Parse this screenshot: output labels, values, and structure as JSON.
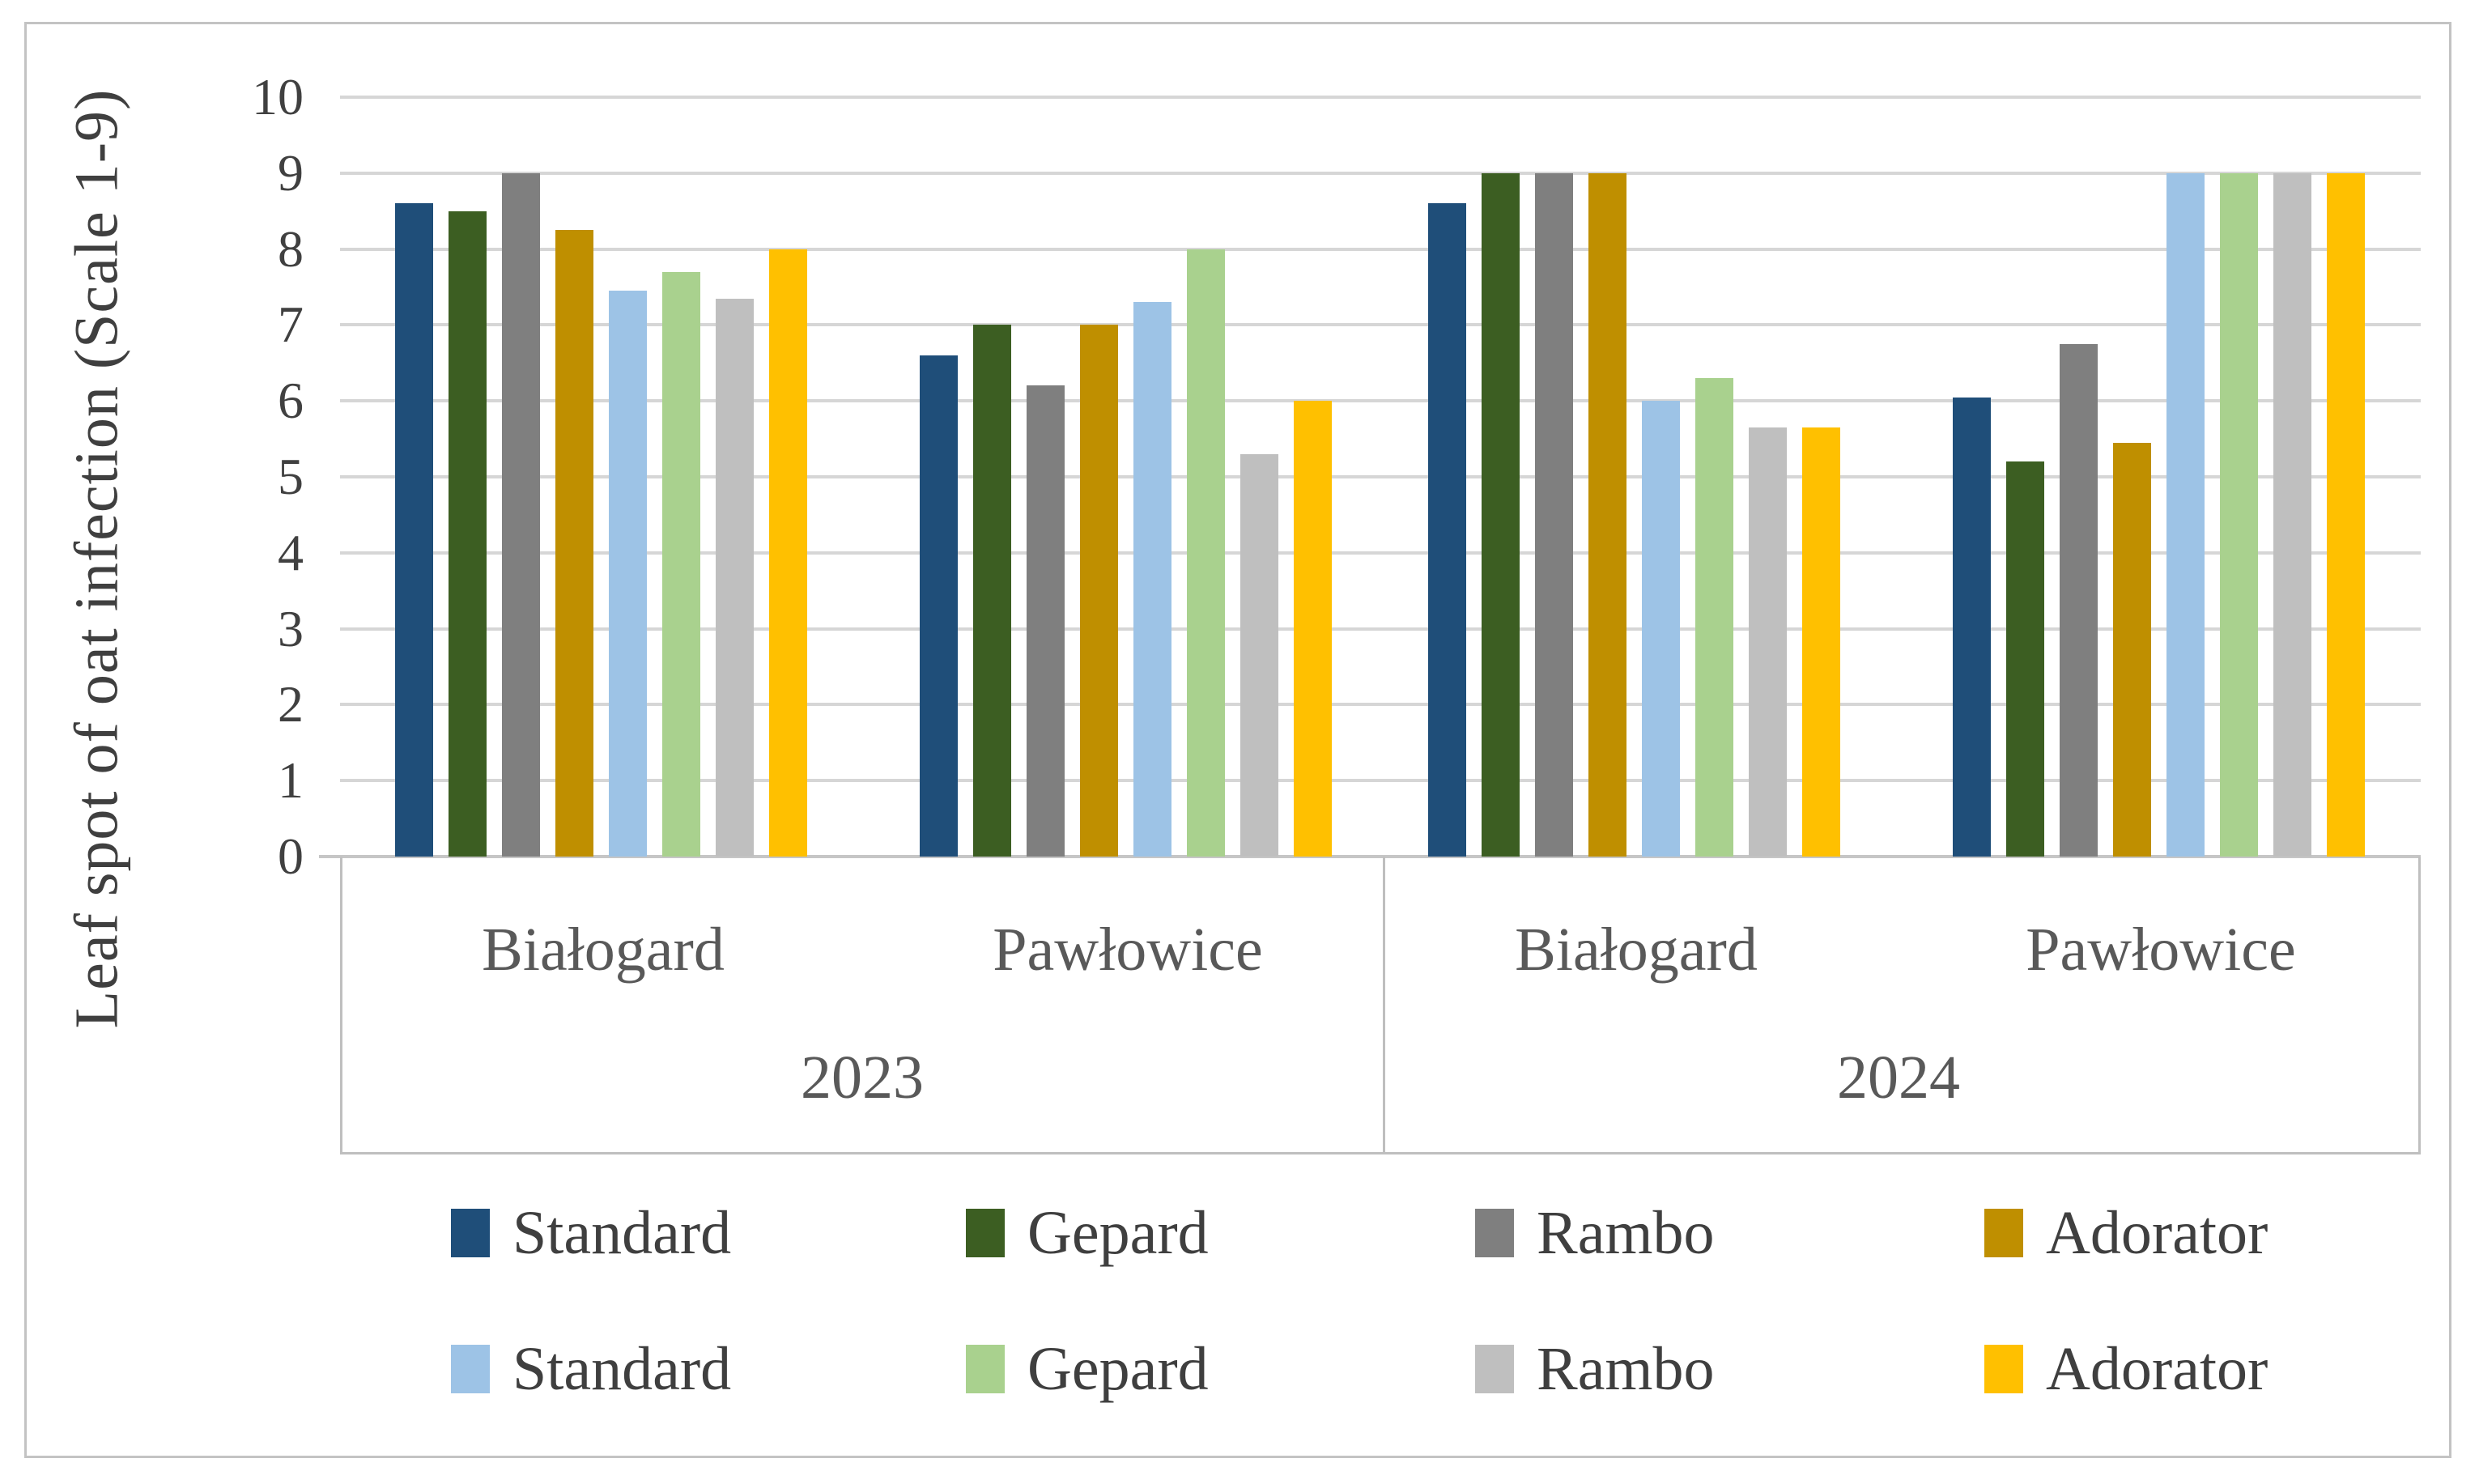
{
  "figure": {
    "background": "#FFFFFF",
    "frame_color": "#C3C3C3",
    "gridline_color": "#D6D6D6",
    "axis_box_color": "#BFBFBF",
    "text_color": "#404040"
  },
  "chart_data": {
    "type": "bar",
    "title": "",
    "ylabel": "Leaf spot of oat infection (Scale 1-9)",
    "xlabel": "",
    "ylim": [
      0,
      10
    ],
    "yticks": [
      0,
      1,
      2,
      3,
      4,
      5,
      6,
      7,
      8,
      9,
      10
    ],
    "grid": true,
    "legend_position": "bottom",
    "group_labels_level1": [
      "Białogard",
      "Pawłowice",
      "Białogard",
      "Pawłowice"
    ],
    "group_labels_level2": [
      "2023",
      "2024"
    ],
    "series": [
      {
        "name": "Standard",
        "color": "#1F4E79",
        "values": [
          8.6,
          6.6,
          8.6,
          6.05
        ]
      },
      {
        "name": "Gepard",
        "color": "#3C5E22",
        "values": [
          8.5,
          7.0,
          9.0,
          5.2
        ]
      },
      {
        "name": "Rambo",
        "color": "#7F7F7F",
        "values": [
          9.0,
          6.2,
          9.0,
          6.75
        ]
      },
      {
        "name": "Adorator",
        "color": "#BF8F00",
        "values": [
          8.25,
          7.0,
          9.0,
          5.45
        ]
      },
      {
        "name": "Standard",
        "color": "#9DC3E6",
        "values": [
          7.45,
          7.3,
          6.0,
          9.0
        ]
      },
      {
        "name": "Gepard",
        "color": "#A9D18E",
        "values": [
          7.7,
          8.0,
          6.3,
          9.0
        ]
      },
      {
        "name": "Rambo",
        "color": "#BFBFBF",
        "values": [
          7.35,
          5.3,
          5.65,
          9.0
        ]
      },
      {
        "name": "Adorator",
        "color": "#FFC000",
        "values": [
          8.0,
          6.0,
          5.65,
          9.0
        ]
      }
    ]
  }
}
